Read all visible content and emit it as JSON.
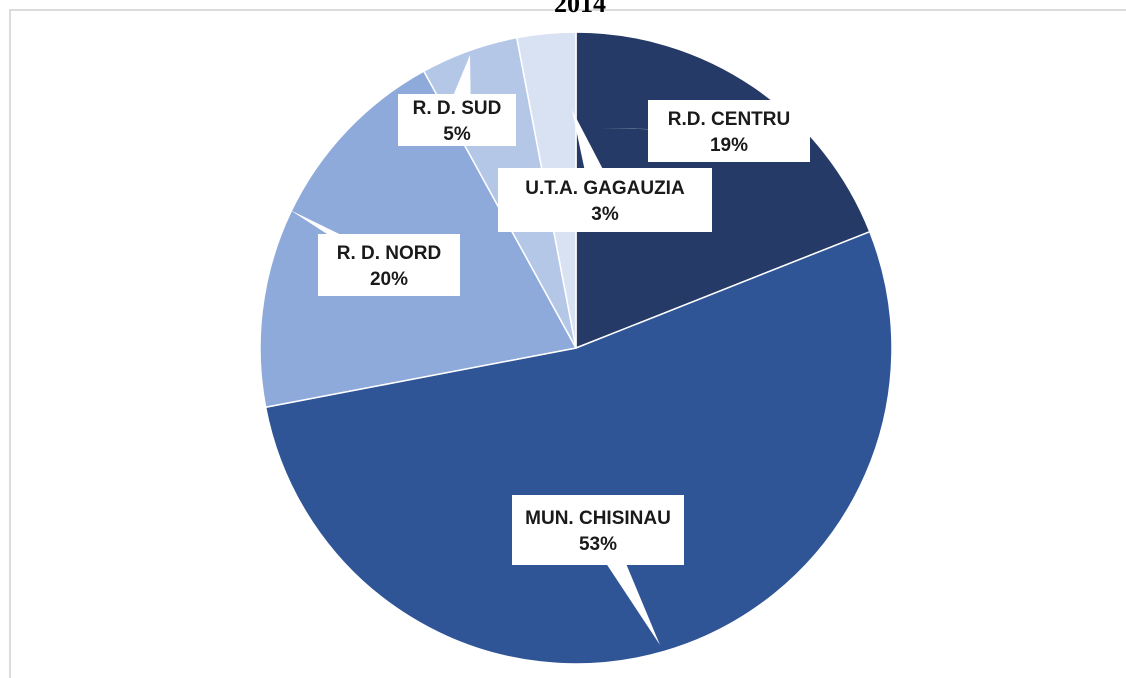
{
  "chart_data": {
    "type": "pie",
    "title": "2014",
    "categories": [
      "R.D. CENTRU",
      "MUN. CHISINAU",
      "R. D. NORD",
      "R. D. SUD",
      "U.T.A. GAGAUZIA"
    ],
    "values": [
      19,
      53,
      20,
      5,
      3
    ],
    "value_labels": [
      "19%",
      "53%",
      "20%",
      "5%",
      "3%"
    ],
    "colors": [
      "#253a66",
      "#2f5597",
      "#8eaadb",
      "#b4c7e7",
      "#d9e2f3"
    ]
  }
}
